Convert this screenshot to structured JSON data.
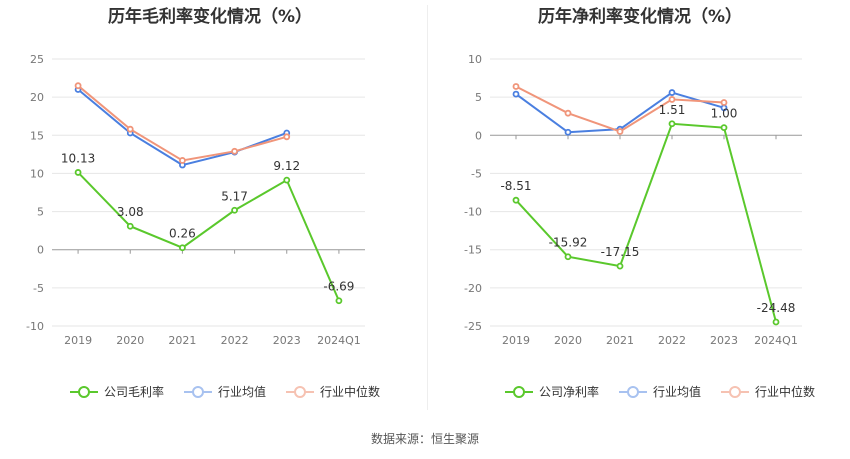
{
  "source_label": "数据来源：恒生聚源",
  "legend_left": [
    "公司毛利率",
    "行业均值",
    "行业中位数"
  ],
  "legend_right": [
    "公司净利率",
    "行业均值",
    "行业中位数"
  ],
  "colors": {
    "company": "#5ac82c",
    "avg": "#4a7fe0",
    "median": "#f0957a"
  },
  "chart_data": [
    {
      "type": "line",
      "title": "历年毛利率变化情况（%）",
      "categories": [
        "2019",
        "2020",
        "2021",
        "2022",
        "2023",
        "2024Q1"
      ],
      "ylim": [
        -10,
        25
      ],
      "yticks": [
        25,
        20,
        15,
        10,
        5,
        0,
        -5,
        -10
      ],
      "grid": true,
      "legend_position": "bottom",
      "series": [
        {
          "name": "公司毛利率",
          "color": "#5ac82c",
          "values": [
            10.13,
            3.08,
            0.26,
            5.17,
            9.12,
            -6.69
          ],
          "labels": [
            "10.13",
            "3.08",
            "0.26",
            "5.17",
            "9.12",
            "-6.69"
          ]
        },
        {
          "name": "行业均值",
          "color": "#4a7fe0",
          "values": [
            21.0,
            15.3,
            11.1,
            12.8,
            15.3,
            null
          ]
        },
        {
          "name": "行业中位数",
          "color": "#f0957a",
          "values": [
            21.5,
            15.8,
            11.7,
            12.9,
            14.8,
            null
          ]
        }
      ]
    },
    {
      "type": "line",
      "title": "历年净利率变化情况（%）",
      "categories": [
        "2019",
        "2020",
        "2021",
        "2022",
        "2023",
        "2024Q1"
      ],
      "ylim": [
        -25,
        10
      ],
      "yticks": [
        10,
        5,
        0,
        -5,
        -10,
        -15,
        -20,
        -25
      ],
      "grid": true,
      "legend_position": "bottom",
      "series": [
        {
          "name": "公司净利率",
          "color": "#5ac82c",
          "values": [
            -8.51,
            -15.92,
            -17.15,
            1.51,
            1.0,
            -24.48
          ],
          "labels": [
            "-8.51",
            "-15.92",
            "-17.15",
            "1.51",
            "1.00",
            "-24.48"
          ]
        },
        {
          "name": "行业均值",
          "color": "#4a7fe0",
          "values": [
            5.4,
            0.4,
            0.8,
            5.6,
            3.6,
            null
          ]
        },
        {
          "name": "行业中位数",
          "color": "#f0957a",
          "values": [
            6.4,
            2.9,
            0.5,
            4.7,
            4.3,
            null
          ]
        }
      ]
    }
  ]
}
